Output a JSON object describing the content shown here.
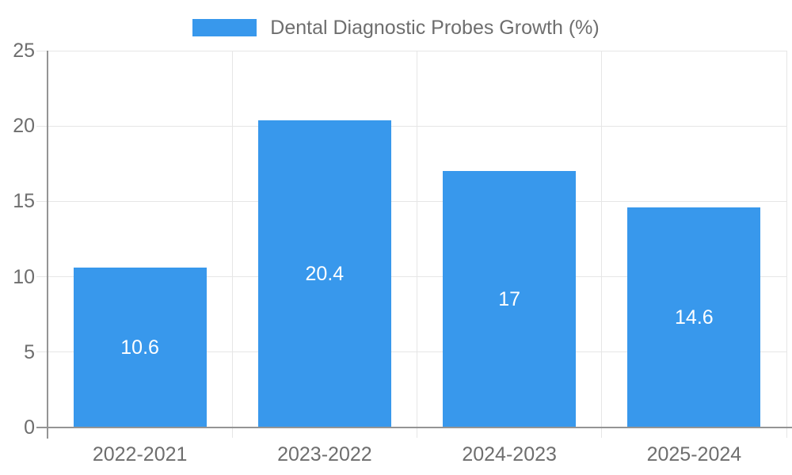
{
  "chart_data": {
    "type": "bar",
    "title": "Dental Diagnostic Probes Growth (%)",
    "categories": [
      "2022-2021",
      "2023-2022",
      "2024-2023",
      "2025-2024"
    ],
    "values": [
      10.6,
      20.4,
      17,
      14.6
    ],
    "value_labels": [
      "10.6",
      "20.4",
      "17",
      "14.6"
    ],
    "xlabel": "",
    "ylabel": "",
    "ylim": [
      0,
      25
    ],
    "yticks": [
      0,
      5,
      10,
      15,
      20,
      25
    ],
    "ytick_labels": [
      "0",
      "5",
      "10",
      "15",
      "20",
      "25"
    ],
    "grid": true,
    "legend_position": "top-center",
    "bar_label_position": "inside-middle"
  },
  "colors": {
    "bar": "#3898EC",
    "grid": "#E6E6E6",
    "axis": "#949494",
    "tick_text": "#6E6E6E",
    "legend_text": "#6E6E6E",
    "value_label_text": "#FFFFFF",
    "background": "#FFFFFF"
  }
}
